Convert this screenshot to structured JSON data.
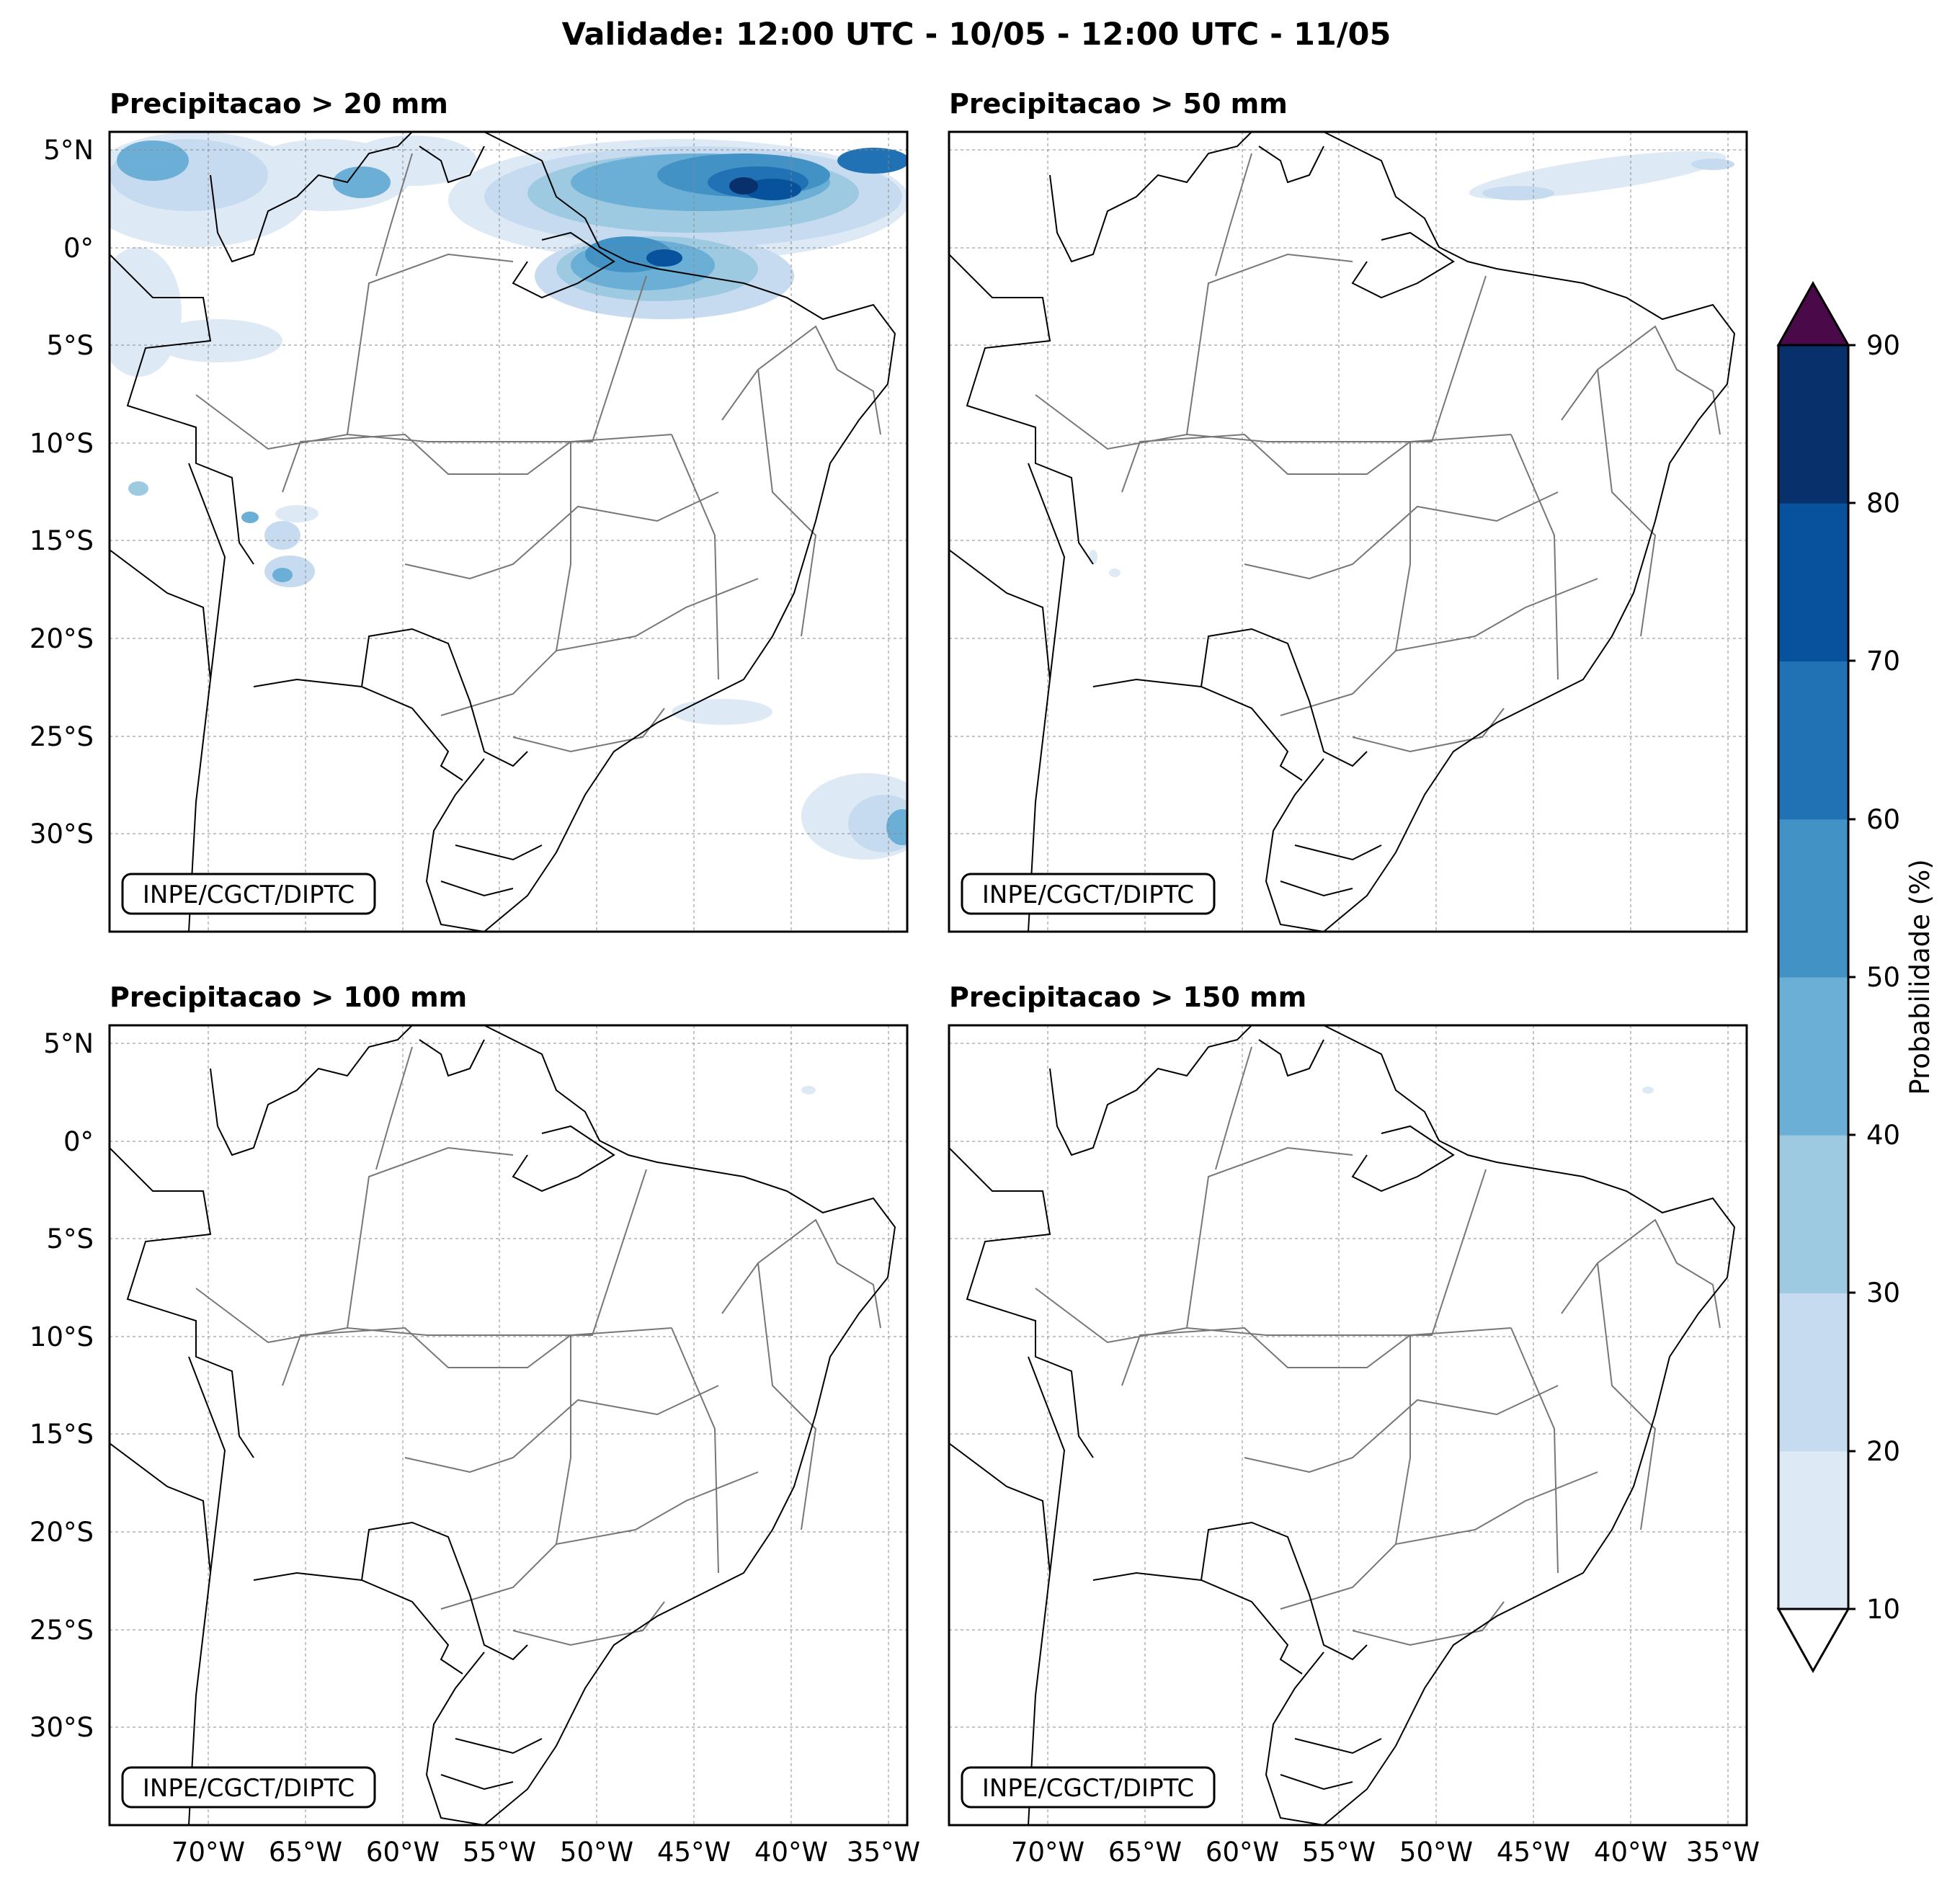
{
  "title": "Validade: 12:00 UTC - 10/05 - 12:00 UTC - 11/05",
  "panels": [
    {
      "title": "Precipitacao > 20 mm",
      "credit": "INPE/CGCT/DIPTC"
    },
    {
      "title": "Precipitacao > 50 mm",
      "credit": "INPE/CGCT/DIPTC"
    },
    {
      "title": "Precipitacao > 100 mm",
      "credit": "INPE/CGCT/DIPTC"
    },
    {
      "title": "Precipitacao > 150 mm",
      "credit": "INPE/CGCT/DIPTC"
    }
  ],
  "lat_labels": [
    "5°N",
    "0°",
    "5°S",
    "10°S",
    "15°S",
    "20°S",
    "25°S",
    "30°S"
  ],
  "lon_labels": [
    "70°W",
    "65°W",
    "60°W",
    "55°W",
    "50°W",
    "45°W",
    "40°W",
    "35°W"
  ],
  "colorbar": {
    "label": "Probabilidade (%)",
    "ticks": [
      "10",
      "20",
      "30",
      "40",
      "50",
      "60",
      "70",
      "80",
      "90"
    ],
    "colors": [
      "#dde9f5",
      "#c6dbef",
      "#9ecae1",
      "#6baed6",
      "#4292c6",
      "#2171b5",
      "#08519c",
      "#08306b"
    ],
    "over_color": "#4a0a4a",
    "under_color": "#ffffff"
  }
}
